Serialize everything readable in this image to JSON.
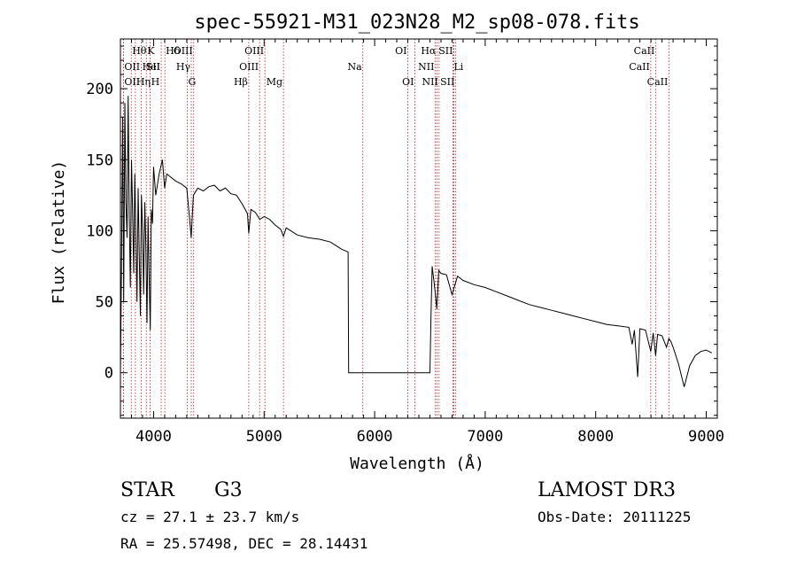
{
  "chart_data": {
    "type": "line",
    "title": "spec-55921-M31_023N28_M2_sp08-078.fits",
    "xlabel": "Wavelength (Å)",
    "ylabel": "Flux (relative)",
    "xlim": [
      3700,
      9100
    ],
    "ylim": [
      -32,
      235
    ],
    "xticks": [
      4000,
      5000,
      6000,
      7000,
      8000,
      9000
    ],
    "yticks": [
      0,
      50,
      100,
      150,
      200
    ],
    "xtick_labels": [
      "4000",
      "5000",
      "6000",
      "7000",
      "8000",
      "9000"
    ],
    "ytick_labels": [
      "0",
      "50",
      "100",
      "150",
      "200"
    ],
    "series": [
      {
        "color": "#000000",
        "x": [
          3700,
          3710,
          3720,
          3730,
          3740,
          3750,
          3760,
          3770,
          3780,
          3790,
          3800,
          3810,
          3820,
          3830,
          3840,
          3850,
          3860,
          3870,
          3880,
          3890,
          3900,
          3910,
          3920,
          3930,
          3940,
          3950,
          3960,
          3970,
          3980,
          3990,
          4000,
          4020,
          4050,
          4080,
          4100,
          4120,
          4150,
          4200,
          4250,
          4300,
          4330,
          4340,
          4360,
          4400,
          4450,
          4500,
          4550,
          4600,
          4650,
          4700,
          4750,
          4800,
          4850,
          4861,
          4880,
          4920,
          4960,
          5000,
          5050,
          5100,
          5150,
          5175,
          5200,
          5300,
          5400,
          5500,
          5600,
          5700,
          5760,
          5765,
          5800,
          5900,
          6000,
          6100,
          6200,
          6300,
          6400,
          6480,
          6500,
          6510,
          6520,
          6540,
          6563,
          6580,
          6600,
          6650,
          6700,
          6750,
          6800,
          6900,
          7000,
          7100,
          7200,
          7300,
          7400,
          7500,
          7600,
          7700,
          7800,
          7900,
          8000,
          8100,
          8200,
          8300,
          8330,
          8350,
          8380,
          8400,
          8450,
          8498,
          8520,
          8542,
          8560,
          8600,
          8640,
          8662,
          8680,
          8700,
          8750,
          8800,
          8850,
          8900,
          8950,
          9000,
          9050
        ],
        "y": [
          0,
          75,
          180,
          50,
          190,
          120,
          95,
          195,
          110,
          60,
          150,
          115,
          70,
          140,
          95,
          50,
          130,
          85,
          40,
          125,
          100,
          55,
          120,
          90,
          35,
          110,
          65,
          30,
          115,
          105,
          145,
          125,
          140,
          150,
          130,
          140,
          138,
          135,
          133,
          130,
          105,
          95,
          125,
          130,
          128,
          131,
          132,
          128,
          130,
          126,
          125,
          119,
          112,
          98,
          115,
          113,
          108,
          110,
          108,
          104,
          101,
          96,
          102,
          97,
          95,
          94,
          92,
          87,
          85,
          0,
          0,
          0,
          0,
          0,
          0,
          0,
          0,
          0,
          0,
          40,
          75,
          62,
          45,
          72,
          70,
          69,
          55,
          68,
          65,
          62,
          60,
          57,
          54,
          51,
          48,
          46,
          44,
          42,
          40,
          38,
          36,
          34,
          33,
          32,
          20,
          30,
          -3,
          31,
          30,
          15,
          28,
          12,
          27,
          26,
          18,
          24,
          22,
          18,
          6,
          -10,
          5,
          12,
          15,
          16,
          14
        ]
      }
    ],
    "lines": [
      {
        "label": "OII",
        "x": 3727,
        "row": 1,
        "side": "right"
      },
      {
        "label": "Hθ",
        "x": 3798,
        "row": 0,
        "side": "right"
      },
      {
        "label": "OII",
        "x": 3727,
        "row": 2,
        "side": "right"
      },
      {
        "label": "Hη",
        "x": 3835,
        "row": 2,
        "side": "right"
      },
      {
        "label": "HeI",
        "x": 3889,
        "row": 1,
        "side": "right"
      },
      {
        "label": "K",
        "x": 3934,
        "row": 0,
        "side": "right"
      },
      {
        "label": "H",
        "x": 3969,
        "row": 2,
        "side": "right"
      },
      {
        "label": "SII",
        "x": 4069,
        "row": 1,
        "side": "left"
      },
      {
        "label": "Hδ",
        "x": 4102,
        "row": 0,
        "side": "right"
      },
      {
        "label": "OIII",
        "x": 4363,
        "row": 0,
        "side": "left"
      },
      {
        "label": "Hγ",
        "x": 4341,
        "row": 1,
        "side": "left"
      },
      {
        "label": "G",
        "x": 4305,
        "row": 2,
        "side": "right"
      },
      {
        "label": "Hβ",
        "x": 4861,
        "row": 2,
        "side": "left"
      },
      {
        "label": "OIII",
        "x": 4959,
        "row": 1,
        "side": "left"
      },
      {
        "label": "OIII",
        "x": 5007,
        "row": 0,
        "side": "left"
      },
      {
        "label": "Mg",
        "x": 5175,
        "row": 2,
        "side": "left"
      },
      {
        "label": "Na",
        "x": 5893,
        "row": 1,
        "side": "left"
      },
      {
        "label": "OI",
        "x": 6300,
        "row": 0,
        "side": "left"
      },
      {
        "label": "OI",
        "x": 6364,
        "row": 2,
        "side": "left"
      },
      {
        "label": "Hα",
        "x": 6563,
        "row": 0,
        "side": "left"
      },
      {
        "label": "NII",
        "x": 6548,
        "row": 1,
        "side": "left"
      },
      {
        "label": "NII",
        "x": 6583,
        "row": 2,
        "side": "left"
      },
      {
        "label": "SII",
        "x": 6716,
        "row": 0,
        "side": "left"
      },
      {
        "label": "Li",
        "x": 6708,
        "row": 1,
        "side": "right"
      },
      {
        "label": "SII",
        "x": 6731,
        "row": 2,
        "side": "left"
      },
      {
        "label": "CaII",
        "x": 8498,
        "row": 1,
        "side": "left"
      },
      {
        "label": "CaII",
        "x": 8542,
        "row": 0,
        "side": "left"
      },
      {
        "label": "CaII",
        "x": 8662,
        "row": 2,
        "side": "left"
      }
    ]
  },
  "info": {
    "class": "STAR",
    "subclass": "G3",
    "survey": "LAMOST DR3",
    "cz": "cz = 27.1 ± 23.7 km/s",
    "obs_date": "Obs-Date: 20111225",
    "coords": "RA =  25.57498, DEC =  28.14431"
  }
}
